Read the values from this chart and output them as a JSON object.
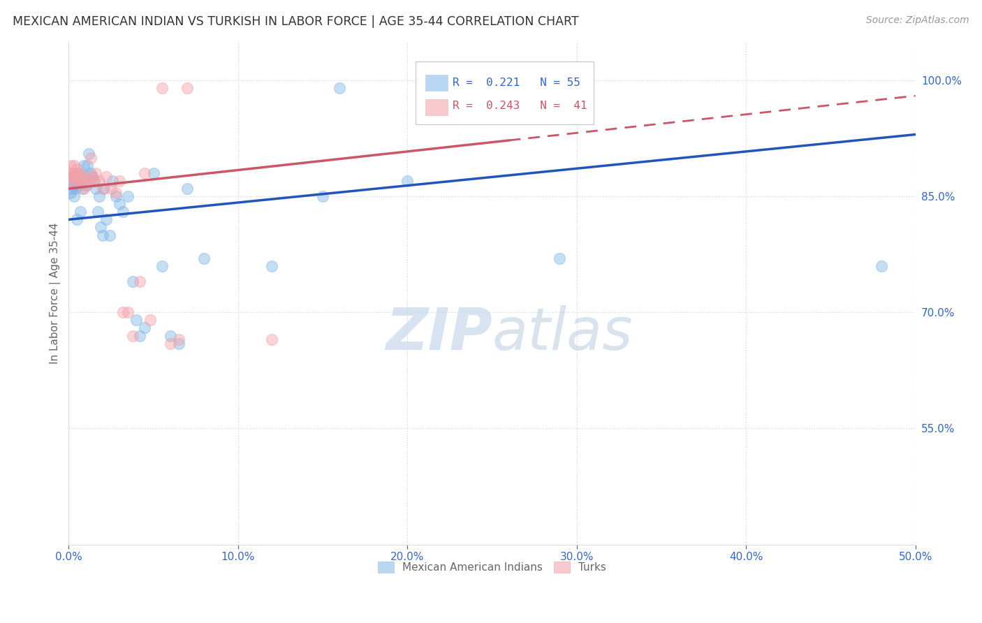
{
  "title": "MEXICAN AMERICAN INDIAN VS TURKISH IN LABOR FORCE | AGE 35-44 CORRELATION CHART",
  "source": "Source: ZipAtlas.com",
  "ylabel": "In Labor Force | Age 35-44",
  "xlim": [
    0.0,
    0.5
  ],
  "ylim": [
    0.4,
    1.05
  ],
  "xticks": [
    0.0,
    0.1,
    0.2,
    0.3,
    0.4,
    0.5
  ],
  "xticklabels": [
    "0.0%",
    "10.0%",
    "20.0%",
    "30.0%",
    "40.0%",
    "50.0%"
  ],
  "yticks": [
    0.55,
    0.7,
    0.85,
    1.0
  ],
  "yticklabels": [
    "55.0%",
    "70.0%",
    "85.0%",
    "100.0%"
  ],
  "blue_color": "#7EB6E8",
  "pink_color": "#F4A0A8",
  "blue_line_color": "#2255BB",
  "pink_line_color": "#CC5566",
  "legend_R_blue": "0.221",
  "legend_N_blue": "55",
  "legend_R_pink": "0.243",
  "legend_N_pink": "41",
  "watermark_zip": "ZIP",
  "watermark_atlas": "atlas",
  "legend1": "Mexican American Indians",
  "legend2": "Turks",
  "blue_x": [
    0.001,
    0.001,
    0.002,
    0.002,
    0.003,
    0.003,
    0.003,
    0.004,
    0.004,
    0.005,
    0.005,
    0.006,
    0.006,
    0.007,
    0.007,
    0.008,
    0.008,
    0.009,
    0.01,
    0.01,
    0.011,
    0.012,
    0.013,
    0.014,
    0.015,
    0.016,
    0.017,
    0.018,
    0.019,
    0.02,
    0.021,
    0.022,
    0.024,
    0.026,
    0.028,
    0.03,
    0.032,
    0.035,
    0.038,
    0.04,
    0.042,
    0.045,
    0.05,
    0.055,
    0.06,
    0.065,
    0.07,
    0.08,
    0.12,
    0.15,
    0.16,
    0.2,
    0.27,
    0.29,
    0.48
  ],
  "blue_y": [
    0.875,
    0.855,
    0.87,
    0.86,
    0.875,
    0.865,
    0.85,
    0.87,
    0.86,
    0.88,
    0.82,
    0.87,
    0.865,
    0.875,
    0.83,
    0.87,
    0.86,
    0.89,
    0.875,
    0.865,
    0.89,
    0.905,
    0.88,
    0.875,
    0.87,
    0.86,
    0.83,
    0.85,
    0.81,
    0.8,
    0.86,
    0.82,
    0.8,
    0.87,
    0.85,
    0.84,
    0.83,
    0.85,
    0.74,
    0.69,
    0.67,
    0.68,
    0.88,
    0.76,
    0.67,
    0.66,
    0.86,
    0.77,
    0.76,
    0.85,
    0.99,
    0.87,
    0.99,
    0.77,
    0.76
  ],
  "pink_x": [
    0.001,
    0.001,
    0.002,
    0.002,
    0.003,
    0.003,
    0.004,
    0.004,
    0.005,
    0.005,
    0.006,
    0.006,
    0.007,
    0.008,
    0.009,
    0.01,
    0.011,
    0.012,
    0.013,
    0.014,
    0.015,
    0.016,
    0.018,
    0.02,
    0.022,
    0.025,
    0.028,
    0.03,
    0.032,
    0.035,
    0.038,
    0.042,
    0.045,
    0.048,
    0.055,
    0.06,
    0.065,
    0.07,
    0.12,
    0.25,
    0.26
  ],
  "pink_y": [
    0.89,
    0.88,
    0.875,
    0.87,
    0.89,
    0.88,
    0.875,
    0.87,
    0.885,
    0.875,
    0.88,
    0.87,
    0.875,
    0.87,
    0.86,
    0.875,
    0.865,
    0.87,
    0.9,
    0.875,
    0.87,
    0.88,
    0.87,
    0.86,
    0.875,
    0.86,
    0.855,
    0.87,
    0.7,
    0.7,
    0.67,
    0.74,
    0.88,
    0.69,
    0.99,
    0.66,
    0.665,
    0.99,
    0.665,
    0.99,
    0.99
  ],
  "background_color": "#FFFFFF",
  "grid_color": "#CCCCCC",
  "blue_line_x0": 0.0,
  "blue_line_y0": 0.82,
  "blue_line_x1": 0.5,
  "blue_line_y1": 0.93,
  "pink_line_x0": 0.0,
  "pink_line_y0": 0.86,
  "pink_line_x1": 0.5,
  "pink_line_y1": 0.98
}
